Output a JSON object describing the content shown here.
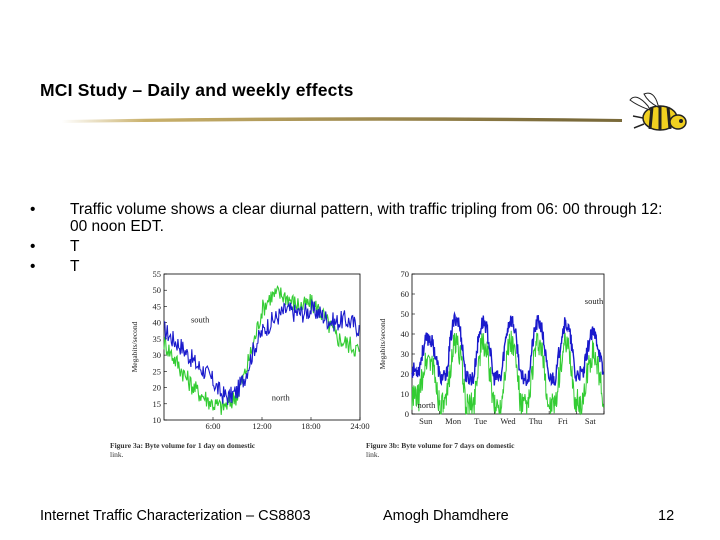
{
  "slide": {
    "title": "MCI Study – Daily and weekly effects",
    "bullets": [
      "Traffic volume shows a clear diurnal pattern, with traffic tripling from 06: 00 through 12: 00 noon EDT.",
      "T",
      "T"
    ],
    "footer": {
      "left": "Internet Traffic Characterization – CS8803",
      "center": "Amogh Dhamdhere",
      "page": "12"
    }
  },
  "chart_data": [
    {
      "type": "line",
      "title": "",
      "caption_bold": "Figure 3a: Byte volume for 1 day on domestic",
      "caption_rest": "link.",
      "xlabel": "",
      "ylabel": "Megabits/second",
      "xticks": [
        "6:00",
        "12:00",
        "18:00",
        "24:00"
      ],
      "yticks": [
        10,
        15,
        20,
        25,
        30,
        35,
        40,
        45,
        50,
        55
      ],
      "ylim": [
        10,
        55
      ],
      "xlim": [
        0,
        24
      ],
      "annotations": [
        {
          "text": "south",
          "x": 3.3,
          "y": 40
        },
        {
          "text": "north",
          "x": 13.2,
          "y": 16
        }
      ],
      "series": [
        {
          "name": "south",
          "color": "#1a1acc",
          "x": [
            0,
            1,
            2,
            3,
            4,
            5,
            6,
            7,
            8,
            9,
            10,
            11,
            12,
            13,
            14,
            15,
            16,
            17,
            18,
            19,
            20,
            21,
            22,
            23,
            24
          ],
          "y": [
            38,
            35,
            33,
            30,
            27,
            25,
            22,
            18,
            17,
            19,
            24,
            32,
            37,
            40,
            42,
            44,
            43,
            43,
            44,
            43,
            41,
            40,
            41,
            40,
            38
          ]
        },
        {
          "name": "north",
          "color": "#33cc33",
          "x": [
            0,
            1,
            2,
            3,
            4,
            5,
            6,
            7,
            8,
            9,
            10,
            11,
            12,
            13,
            14,
            15,
            16,
            17,
            18,
            19,
            20,
            21,
            22,
            23,
            24
          ],
          "y": [
            34,
            30,
            26,
            22,
            19,
            17,
            15,
            14,
            15,
            18,
            25,
            34,
            44,
            48,
            49,
            48,
            46,
            45,
            46,
            44,
            40,
            36,
            34,
            33,
            31
          ]
        }
      ]
    },
    {
      "type": "line",
      "title": "",
      "caption_bold": "Figure 3b: Byte volume for 7 days on domestic",
      "caption_rest": "link.",
      "xlabel": "",
      "ylabel": "Megabits/second",
      "xticks": [
        "Sun",
        "Mon",
        "Tue",
        "Wed",
        "Thu",
        "Fri",
        "Sat"
      ],
      "yticks": [
        0,
        10,
        20,
        30,
        40,
        50,
        60,
        70
      ],
      "ylim": [
        0,
        70
      ],
      "xlim": [
        0,
        7
      ],
      "annotations": [
        {
          "text": "south",
          "x": 6.3,
          "y": 55
        },
        {
          "text": "north",
          "x": 0.2,
          "y": 3
        }
      ],
      "days": 7,
      "daily_profile_hours": [
        0,
        3,
        6,
        9,
        12,
        15,
        18,
        21,
        24
      ],
      "series": [
        {
          "name": "south",
          "color": "#1a1acc",
          "daily_peak": [
            38,
            48,
            46,
            47,
            46,
            45,
            40
          ],
          "daily_min": [
            22,
            18,
            18,
            18,
            18,
            18,
            20
          ]
        },
        {
          "name": "north",
          "color": "#33cc33",
          "daily_peak": [
            28,
            36,
            35,
            36,
            35,
            34,
            30
          ],
          "daily_min": [
            8,
            4,
            4,
            4,
            4,
            4,
            6
          ]
        }
      ]
    }
  ]
}
